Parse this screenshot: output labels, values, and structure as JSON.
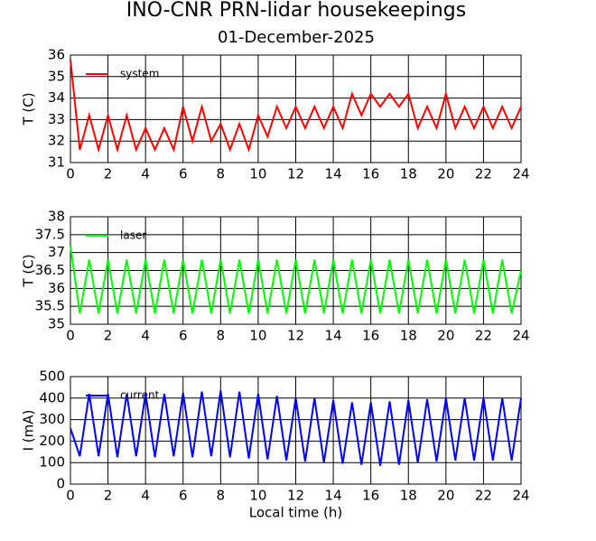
{
  "chart_data": [
    {
      "type": "line",
      "title": "INO-CNR PRN-lidar housekeepings",
      "subtitle": "01-December-2025",
      "ylabel": "T (C)",
      "x": [
        0,
        0.5,
        1,
        1.5,
        2,
        2.5,
        3,
        3.5,
        4,
        4.5,
        5,
        5.5,
        6,
        6.5,
        7,
        7.5,
        8,
        8.5,
        9,
        9.5,
        10,
        10.5,
        11,
        11.5,
        12,
        12.5,
        13,
        13.5,
        14,
        14.5,
        15,
        15.5,
        16,
        16.5,
        17,
        17.5,
        18,
        18.5,
        19,
        19.5,
        20,
        20.5,
        21,
        21.5,
        22,
        22.5,
        23,
        23.5,
        24
      ],
      "xlim": [
        0,
        24
      ],
      "xticks": [
        0,
        2,
        4,
        6,
        8,
        10,
        12,
        14,
        16,
        18,
        20,
        22,
        24
      ],
      "ylim": [
        31,
        36
      ],
      "yticks": [
        31,
        32,
        33,
        34,
        35,
        36
      ],
      "grid": true,
      "series": [
        {
          "name": "system",
          "color": "#ff0000",
          "values": [
            35.8,
            31.6,
            33.2,
            31.6,
            33.2,
            31.6,
            33.2,
            31.6,
            32.6,
            31.6,
            32.6,
            31.6,
            33.6,
            32.0,
            33.6,
            32.0,
            32.8,
            31.6,
            32.8,
            31.6,
            33.2,
            32.2,
            33.6,
            32.6,
            33.6,
            32.6,
            33.6,
            32.6,
            33.6,
            32.6,
            34.2,
            33.2,
            34.2,
            33.6,
            34.2,
            33.6,
            34.2,
            32.6,
            33.6,
            32.6,
            34.2,
            32.6,
            33.6,
            32.6,
            33.6,
            32.6,
            33.6,
            32.6,
            33.6
          ]
        }
      ]
    },
    {
      "type": "line",
      "ylabel": "T (C)",
      "x": [
        0,
        0.5,
        1,
        1.5,
        2,
        2.5,
        3,
        3.5,
        4,
        4.5,
        5,
        5.5,
        6,
        6.5,
        7,
        7.5,
        8,
        8.5,
        9,
        9.5,
        10,
        10.5,
        11,
        11.5,
        12,
        12.5,
        13,
        13.5,
        14,
        14.5,
        15,
        15.5,
        16,
        16.5,
        17,
        17.5,
        18,
        18.5,
        19,
        19.5,
        20,
        20.5,
        21,
        21.5,
        22,
        22.5,
        23,
        23.5,
        24
      ],
      "xlim": [
        0,
        24
      ],
      "xticks": [
        0,
        2,
        4,
        6,
        8,
        10,
        12,
        14,
        16,
        18,
        20,
        22,
        24
      ],
      "ylim": [
        35,
        38
      ],
      "yticks": [
        35,
        35.5,
        36,
        36.5,
        37,
        37.5,
        38
      ],
      "grid": true,
      "series": [
        {
          "name": "laser",
          "color": "#00ff00",
          "values": [
            37.2,
            35.3,
            36.8,
            35.3,
            36.8,
            35.3,
            36.8,
            35.3,
            36.8,
            35.3,
            36.8,
            35.3,
            36.8,
            35.3,
            36.8,
            35.3,
            36.8,
            35.3,
            36.8,
            35.3,
            36.8,
            35.3,
            36.8,
            35.3,
            36.8,
            35.3,
            36.8,
            35.3,
            36.8,
            35.3,
            36.8,
            35.3,
            36.8,
            35.3,
            36.8,
            35.3,
            36.8,
            35.3,
            36.8,
            35.3,
            36.8,
            35.3,
            36.8,
            35.3,
            36.8,
            35.3,
            36.8,
            35.3,
            36.5
          ]
        }
      ]
    },
    {
      "type": "line",
      "ylabel": "I (mA)",
      "xlabel": "Local time (h)",
      "x": [
        0,
        0.5,
        1,
        1.5,
        2,
        2.5,
        3,
        3.5,
        4,
        4.5,
        5,
        5.5,
        6,
        6.5,
        7,
        7.5,
        8,
        8.5,
        9,
        9.5,
        10,
        10.5,
        11,
        11.5,
        12,
        12.5,
        13,
        13.5,
        14,
        14.5,
        15,
        15.5,
        16,
        16.5,
        17,
        17.5,
        18,
        18.5,
        19,
        19.5,
        20,
        20.5,
        21,
        21.5,
        22,
        22.5,
        23,
        23.5,
        24
      ],
      "xlim": [
        0,
        24
      ],
      "xticks": [
        0,
        2,
        4,
        6,
        8,
        10,
        12,
        14,
        16,
        18,
        20,
        22,
        24
      ],
      "ylim": [
        0,
        500
      ],
      "yticks": [
        0,
        100,
        200,
        300,
        400,
        500
      ],
      "grid": true,
      "series": [
        {
          "name": "current",
          "color": "#0000ff",
          "values": [
            260,
            130,
            420,
            130,
            420,
            125,
            420,
            130,
            420,
            125,
            420,
            130,
            425,
            125,
            430,
            130,
            435,
            125,
            430,
            120,
            420,
            115,
            410,
            110,
            400,
            105,
            400,
            100,
            390,
            95,
            380,
            90,
            380,
            85,
            385,
            90,
            390,
            100,
            395,
            105,
            400,
            110,
            400,
            110,
            400,
            110,
            400,
            110,
            400
          ]
        }
      ]
    }
  ]
}
